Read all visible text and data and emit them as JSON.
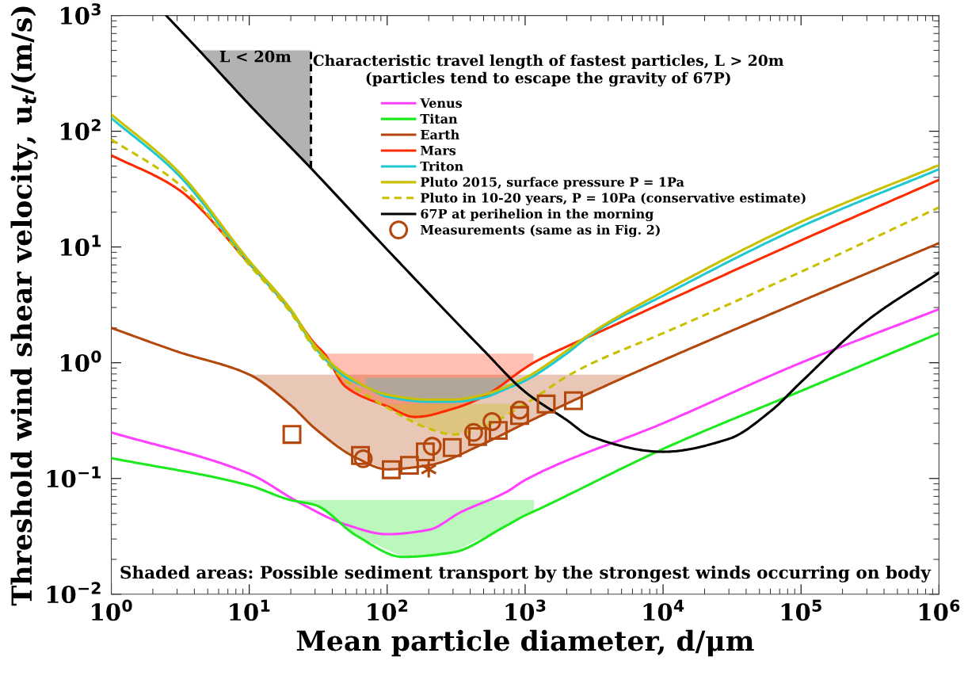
{
  "chart_data": {
    "type": "line",
    "xlabel": "Mean particle diameter, d/μm",
    "ylabel": "Threshold wind shear velocity, u$_{t}$/(m/s)",
    "log": "xy",
    "grid": false,
    "legend": "top",
    "xlim": [
      1,
      1000000
    ],
    "ylim": [
      0.01,
      1000
    ],
    "xticks": [
      {
        "value": 1,
        "label": "10$^{0}$"
      },
      {
        "value": 10,
        "label": "10$^{1}$"
      },
      {
        "value": 100,
        "label": "10$^{2}$"
      },
      {
        "value": 1000,
        "label": "10$^{3}$"
      },
      {
        "value": 10000,
        "label": "10$^{4}$"
      },
      {
        "value": 100000,
        "label": "10$^{5}$"
      },
      {
        "value": 1000000,
        "label": "10$^{6}$"
      }
    ],
    "yticks": [
      {
        "value": 0.01,
        "label": "10$^{−2}$"
      },
      {
        "value": 0.1,
        "label": "10$^{−1}$"
      },
      {
        "value": 1,
        "label": "10$^{0}$"
      },
      {
        "value": 10,
        "label": "10$^{1}$"
      },
      {
        "value": 100,
        "label": "10$^{2}$"
      },
      {
        "value": 1000,
        "label": "10$^{3}$"
      }
    ],
    "annotations": [
      "L < 20m",
      "Characteristic travel length of fastest particles, L > 20m\n(particles tend to escape the gravity of 67P)",
      "Shaded areas: Possible sediment transport by the strongest winds occurring on body"
    ],
    "series": [
      {
        "color": "#000000",
        "line_style": "dashed",
        "x": [
          28,
          28
        ],
        "values": [
          48,
          500
        ]
      },
      {
        "name": "Venus",
        "color": "#ff40ff",
        "line_style": "solid",
        "x": [
          1,
          10,
          23,
          50,
          100,
          200,
          340,
          740,
          1000,
          10000,
          100000,
          1000000
        ],
        "values": [
          0.25,
          0.11,
          0.062,
          0.04,
          0.033,
          0.036,
          0.051,
          0.077,
          0.097,
          0.3,
          1.0,
          2.9
        ]
      },
      {
        "name": "Titan",
        "color": "#1ee81e",
        "line_style": "solid",
        "x": [
          1,
          10,
          20,
          30,
          60,
          130,
          300,
          700,
          1000,
          1160,
          10000,
          100000,
          1000000
        ],
        "values": [
          0.15,
          0.087,
          0.065,
          0.059,
          0.032,
          0.021,
          0.023,
          0.038,
          0.048,
          0.052,
          0.18,
          0.57,
          1.8
        ],
        "lower": [
          null,
          null,
          0.065,
          0.059,
          0.032,
          0.021,
          0.023,
          0.038,
          0.048,
          0.052,
          null,
          null,
          null
        ],
        "upper": [
          null,
          null,
          0.065,
          0.065,
          0.065,
          0.065,
          0.065,
          0.065,
          0.065,
          0.065,
          null,
          null,
          null
        ]
      },
      {
        "name": "Earth",
        "color": "#b4470c",
        "line_style": "solid",
        "x": [
          1,
          3,
          10,
          20,
          30,
          60,
          100,
          200,
          500,
          1000,
          5800,
          10000,
          100000,
          1000000
        ],
        "values": [
          2.0,
          1.25,
          0.79,
          0.43,
          0.27,
          0.15,
          0.12,
          0.13,
          0.2,
          0.3,
          0.79,
          1.05,
          3.4,
          10.8
        ],
        "lower": [
          null,
          null,
          0.79,
          0.43,
          0.27,
          0.15,
          0.12,
          0.13,
          0.2,
          0.3,
          0.79,
          null,
          null,
          null
        ],
        "upper": [
          null,
          null,
          0.79,
          0.79,
          0.79,
          0.79,
          0.79,
          0.79,
          0.79,
          0.79,
          0.79,
          null,
          null,
          null
        ]
      },
      {
        "name": "Mars",
        "color": "#ff2a00",
        "line_style": "solid",
        "x": [
          1,
          3,
          10,
          20,
          30,
          35,
          50,
          100,
          160,
          300,
          500,
          1000,
          1150,
          2000,
          3000,
          10000,
          100000,
          1000000
        ],
        "values": [
          62,
          32,
          7.2,
          2.8,
          1.45,
          1.2,
          0.62,
          0.42,
          0.34,
          0.4,
          0.51,
          0.9,
          1.0,
          1.38,
          1.71,
          3.3,
          11.4,
          38
        ],
        "lower": [
          null,
          null,
          null,
          null,
          null,
          1.2,
          0.62,
          0.42,
          0.34,
          0.4,
          0.51,
          0.9,
          1.0,
          null,
          null,
          null,
          null,
          null
        ],
        "upper": [
          null,
          null,
          null,
          null,
          null,
          1.2,
          1.2,
          1.2,
          1.2,
          1.2,
          1.2,
          1.2,
          1.2,
          null,
          null,
          null,
          null,
          null
        ]
      },
      {
        "name": "Triton",
        "color": "#20c8d0",
        "line_style": "solid",
        "x": [
          1,
          3,
          10,
          20,
          30,
          50,
          70,
          100,
          200,
          300,
          500,
          740,
          1000,
          2000,
          3000,
          10000,
          100000,
          1000000
        ],
        "values": [
          130,
          43,
          7.3,
          2.8,
          1.35,
          0.75,
          0.62,
          0.51,
          0.46,
          0.46,
          0.5,
          0.6,
          0.7,
          1.2,
          1.75,
          3.8,
          15,
          47
        ],
        "lower": [
          null,
          null,
          null,
          null,
          null,
          null,
          0.62,
          0.51,
          0.46,
          0.46,
          0.5,
          0.6,
          null,
          null,
          null,
          null,
          null,
          null
        ],
        "upper": [
          null,
          null,
          null,
          null,
          null,
          null,
          0.74,
          0.74,
          0.74,
          0.74,
          0.74,
          0.74,
          null,
          null,
          null,
          null,
          null,
          null
        ]
      },
      {
        "name": "Pluto 2015, surface pressure P = 1Pa",
        "color": "#c8c000",
        "line_style": "solid",
        "x": [
          1,
          3,
          10,
          20,
          30,
          50,
          100,
          200,
          300,
          500,
          1000,
          2000,
          3000,
          10000,
          100000,
          1000000
        ],
        "values": [
          140,
          46,
          7.6,
          2.9,
          1.4,
          0.79,
          0.53,
          0.48,
          0.48,
          0.53,
          0.74,
          1.27,
          1.8,
          4.1,
          16.5,
          51
        ]
      },
      {
        "name": "Pluto in 10-20 years, P = 10Pa (conservative estimate)",
        "color": "#c8c000",
        "line_style": "dashed",
        "x": [
          1,
          3,
          10,
          20,
          30,
          50,
          100,
          200,
          300,
          500,
          1000,
          2000,
          3000,
          10000,
          100000,
          1000000
        ],
        "values": [
          85,
          36,
          7.0,
          2.7,
          1.3,
          0.7,
          0.41,
          0.27,
          0.24,
          0.28,
          0.44,
          0.76,
          0.98,
          1.8,
          6.1,
          22
        ],
        "lower": [
          null,
          null,
          null,
          null,
          null,
          null,
          0.41,
          0.27,
          0.24,
          0.28,
          0.44,
          null,
          null,
          null,
          null,
          null
        ],
        "upper": [
          null,
          null,
          null,
          null,
          null,
          null,
          0.44,
          0.44,
          0.44,
          0.44,
          0.44,
          null,
          null,
          null,
          null,
          null
        ]
      },
      {
        "name": "67P at perihelion in the morning",
        "color": "#000000",
        "line_style": "solid",
        "x": [
          2.5,
          4.4,
          10,
          28,
          30,
          100,
          500,
          1000,
          2000,
          3000,
          10000,
          30000,
          60000,
          100000,
          300000,
          1000000
        ],
        "values": [
          1000,
          490,
          170,
          48,
          44,
          9.5,
          1.28,
          0.56,
          0.32,
          0.23,
          0.17,
          0.22,
          0.38,
          0.68,
          2.3,
          6.0
        ],
        "lower": [
          null,
          490,
          170,
          48,
          null,
          null,
          null,
          null,
          null,
          null,
          null,
          null,
          null,
          null,
          null,
          null
        ],
        "upper": [
          null,
          500,
          500,
          500,
          null,
          null,
          null,
          null,
          null,
          null,
          null,
          null,
          null,
          null,
          null,
          null
        ]
      },
      {
        "name": "Measurements (same as in Fig. 2)",
        "type": "scatter",
        "color": "#b4470c",
        "marker": "circle",
        "x": [
          67,
          212,
          423,
          575,
          912
        ],
        "values": [
          0.148,
          0.19,
          0.25,
          0.31,
          0.39
        ]
      },
      {
        "type": "scatter",
        "color": "#b4470c",
        "marker": "square",
        "x": [
          20.4,
          64,
          107,
          145,
          189,
          296,
          452,
          638,
          912,
          1420,
          2240
        ],
        "values": [
          0.24,
          0.158,
          0.119,
          0.13,
          0.17,
          0.185,
          0.23,
          0.26,
          0.35,
          0.44,
          0.47
        ]
      },
      {
        "type": "scatter",
        "color": "#b4470c",
        "marker": "cross",
        "x": [
          200
        ],
        "values": [
          0.12
        ]
      }
    ]
  }
}
